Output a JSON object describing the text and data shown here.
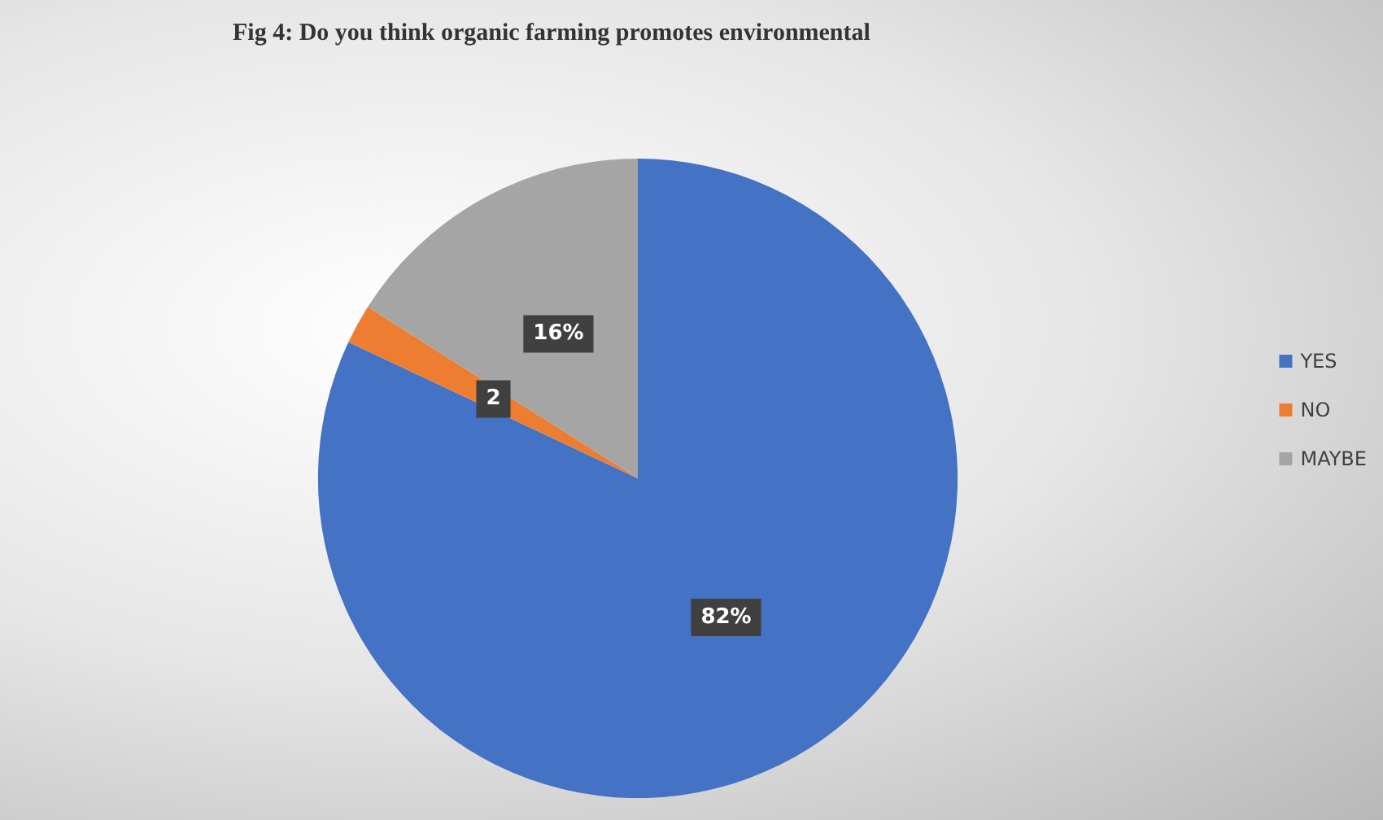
{
  "chart_data": {
    "type": "pie",
    "title": "Fig 4: Do you think organic farming promotes environmental",
    "categories": [
      "YES",
      "NO",
      "MAYBE"
    ],
    "values": [
      82,
      2,
      16
    ],
    "colors": [
      "#4472c4",
      "#ed7d31",
      "#a5a5a5"
    ],
    "value_labels": [
      "82%",
      "2",
      "16%"
    ],
    "legend": "right"
  }
}
